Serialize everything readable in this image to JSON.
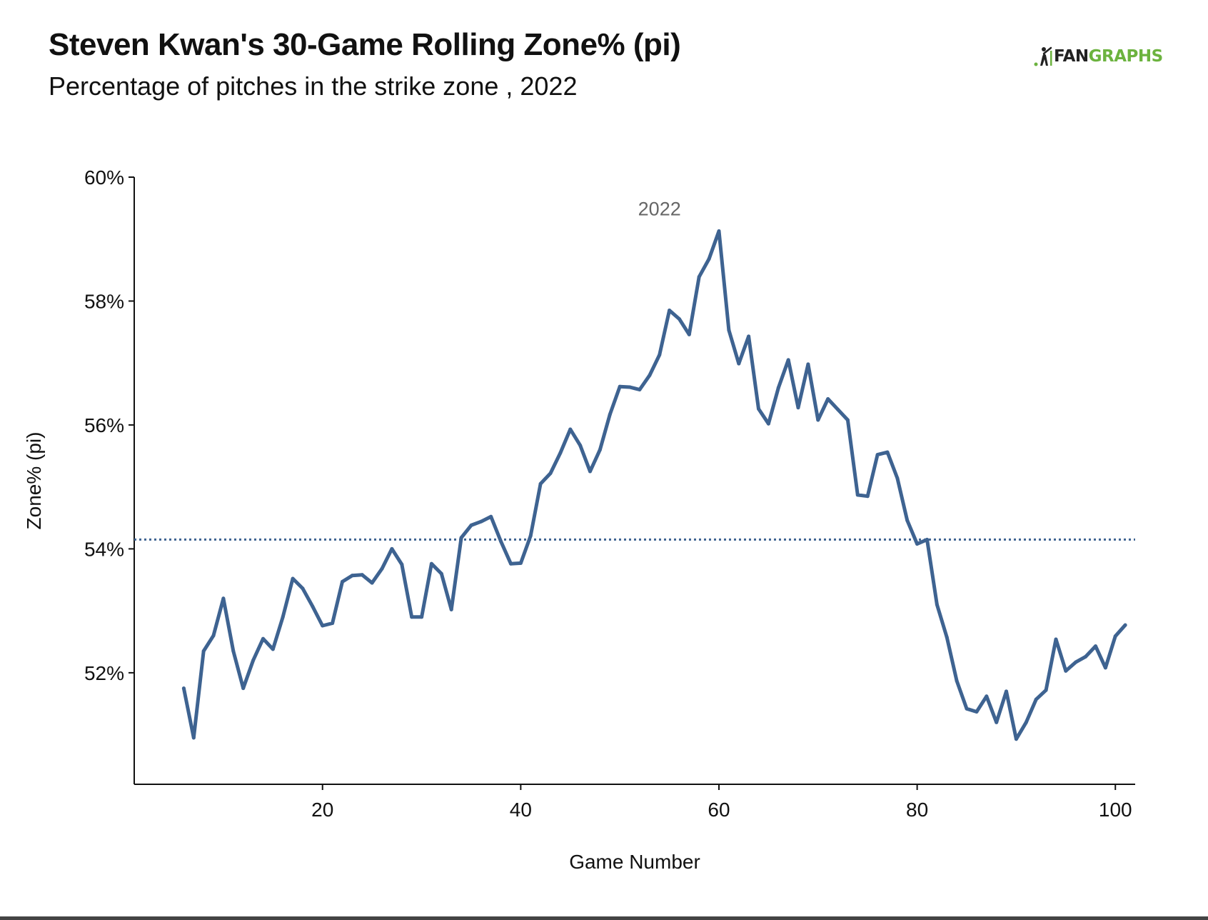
{
  "header": {
    "title": "Steven Kwan's 30-Game Rolling Zone% (pi)",
    "subtitle": "Percentage of pitches in the strike zone , 2022",
    "logo_prefix": "",
    "logo_brand_a": "FAN",
    "logo_brand_b": "GRAPHS",
    "logo_icon": "batter-icon"
  },
  "colors": {
    "line": "#3e6391",
    "reference": "#3e6391",
    "axis": "#111111",
    "brand_green": "#6cb33f"
  },
  "chart_data": {
    "type": "line",
    "title": "Steven Kwan's 30-Game Rolling Zone% (pi)",
    "subtitle": "Percentage of pitches in the strike zone , 2022",
    "xlabel": "Game Number",
    "ylabel": "Zone% (pi)",
    "xlim": [
      1,
      102
    ],
    "ylim": [
      50.2,
      60
    ],
    "xticks": [
      20,
      40,
      60,
      80,
      100
    ],
    "yticks": [
      52,
      54,
      56,
      58,
      60
    ],
    "ytick_labels": [
      "52%",
      "54%",
      "56%",
      "58%",
      "60%"
    ],
    "annotation": {
      "text": "2022",
      "x": 54,
      "y": 59.5
    },
    "reference_line": {
      "y": 54.15,
      "style": "dotted"
    },
    "grid": false,
    "legend": "none",
    "series": [
      {
        "x": [
          6,
          7,
          8,
          9,
          10,
          11,
          12,
          13,
          14,
          15,
          16,
          17,
          18,
          19,
          20,
          21,
          22,
          23,
          24,
          25,
          26,
          27,
          28,
          29,
          30,
          31,
          32,
          33,
          34,
          35,
          36,
          37,
          38,
          39,
          40,
          41,
          42,
          43,
          44,
          45,
          46,
          47,
          48,
          49,
          50,
          51,
          52,
          53,
          54,
          55,
          56,
          57,
          58,
          59,
          60,
          61,
          62,
          63,
          64,
          65,
          66,
          67,
          68,
          69,
          70,
          71,
          72,
          73,
          74,
          75,
          76,
          77,
          78,
          79,
          80,
          81,
          82,
          83,
          84,
          85,
          86,
          87,
          88,
          89,
          90,
          91,
          92,
          93,
          94,
          95,
          96,
          97,
          98,
          99,
          100,
          101
        ],
        "values": [
          51.75,
          50.95,
          52.35,
          52.6,
          53.2,
          52.35,
          51.75,
          52.2,
          52.55,
          52.38,
          52.9,
          53.52,
          53.36,
          53.07,
          52.76,
          52.8,
          53.47,
          53.57,
          53.58,
          53.45,
          53.68,
          54.0,
          53.75,
          52.9,
          52.9,
          53.76,
          53.6,
          53.02,
          54.18,
          54.38,
          54.44,
          54.52,
          54.12,
          53.76,
          53.77,
          54.21,
          55.05,
          55.22,
          55.55,
          55.93,
          55.67,
          55.25,
          55.6,
          56.17,
          56.62,
          56.61,
          56.57,
          56.8,
          57.13,
          57.85,
          57.71,
          57.46,
          58.39,
          58.68,
          59.13,
          57.53,
          56.99,
          57.43,
          56.26,
          56.02,
          56.6,
          57.05,
          56.28,
          56.98,
          56.08,
          56.42,
          56.25,
          56.08,
          54.87,
          54.85,
          55.52,
          55.56,
          55.14,
          54.46,
          54.08,
          54.15,
          53.1,
          52.57,
          51.87,
          51.42,
          51.37,
          51.62,
          51.2,
          51.7,
          50.93,
          51.2,
          51.57,
          51.72,
          52.54,
          52.03,
          52.17,
          52.26,
          52.43,
          52.08,
          52.59,
          52.77
        ]
      }
    ]
  }
}
